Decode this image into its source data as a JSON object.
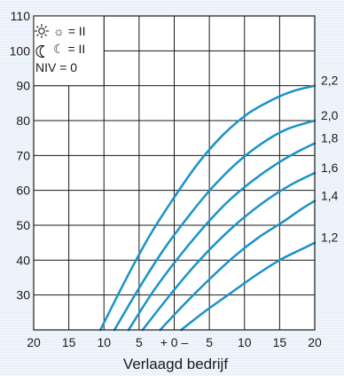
{
  "chart_data": {
    "type": "line",
    "title": "",
    "xlabel": "Verlaagd bedrijf",
    "ylabel": "",
    "x_ticks": [
      "20",
      "15",
      "10",
      "5",
      "+ 0 –",
      "5",
      "10",
      "15",
      "20"
    ],
    "x_range": [
      -20,
      20
    ],
    "ylim": [
      20,
      110
    ],
    "y_ticks": [
      30,
      40,
      50,
      60,
      70,
      80,
      90,
      100,
      110
    ],
    "grid": true,
    "legend": {
      "position": "top-left",
      "lines": [
        "☼ = II",
        "☾ = II",
        "NIV = 0"
      ]
    },
    "series": [
      {
        "name": "2,2",
        "x": [
          -10.5,
          -7,
          -3.5,
          0,
          3.5,
          7,
          10.5,
          14,
          17,
          20
        ],
        "y": [
          20,
          34,
          47,
          58,
          68,
          76,
          82,
          86,
          88.5,
          90
        ]
      },
      {
        "name": "2,0",
        "x": [
          -8.5,
          -5,
          -1.5,
          2,
          5.5,
          9,
          12.5,
          16,
          20
        ],
        "y": [
          20,
          32,
          43,
          52.5,
          61,
          68,
          73.5,
          77.5,
          80
        ]
      },
      {
        "name": "1,8",
        "x": [
          -6.5,
          -3,
          0.5,
          4,
          7.5,
          11,
          14.5,
          17.5,
          20
        ],
        "y": [
          20,
          31,
          40.5,
          49,
          56.5,
          62.5,
          67.5,
          71,
          73.5
        ]
      },
      {
        "name": "1,6",
        "x": [
          -4.5,
          -1,
          2.5,
          6,
          9.5,
          13,
          16.5,
          20
        ],
        "y": [
          20,
          29,
          37.5,
          45,
          51.5,
          57,
          61.5,
          65
        ]
      },
      {
        "name": "1,4",
        "x": [
          -2,
          1.5,
          5,
          8.5,
          12,
          15.5,
          18,
          20
        ],
        "y": [
          20,
          27.5,
          34.5,
          41,
          46.5,
          51,
          54.5,
          57
        ]
      },
      {
        "name": "1,2",
        "x": [
          1,
          4.5,
          8,
          11.5,
          15,
          18,
          20
        ],
        "y": [
          20,
          25.5,
          30.5,
          35.5,
          40,
          43,
          45
        ]
      }
    ]
  }
}
